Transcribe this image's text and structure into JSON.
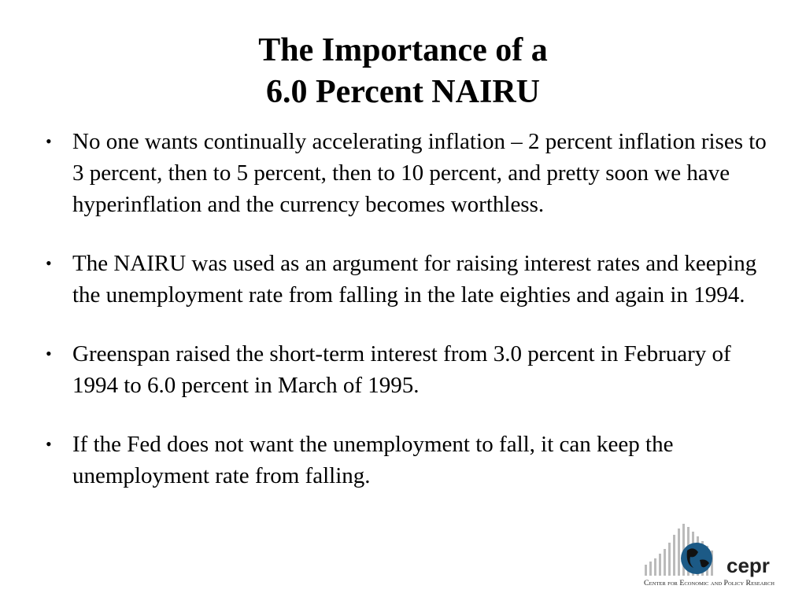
{
  "slide": {
    "title": [
      "The Importance of a",
      "6.0 Percent NAIRU"
    ],
    "bullets": [
      "No one wants continually accelerating inflation – 2 percent inflation rises to 3 percent, then to 5 percent, then to 10 percent, and pretty soon we have hyperinflation and the currency becomes worthless.",
      "The NAIRU was used as an argument for raising interest rates and keeping the unemployment rate from falling in the late eighties and again in 1994.",
      "Greenspan raised the short-term interest from 3.0 percent in February of 1994 to 6.0 percent in March of 1995.",
      "If the Fed does not want the unemployment to fall, it can keep the unemployment rate from falling."
    ],
    "logo": {
      "name": "cepr",
      "full_name": "Center for Economic and Policy Research"
    }
  }
}
